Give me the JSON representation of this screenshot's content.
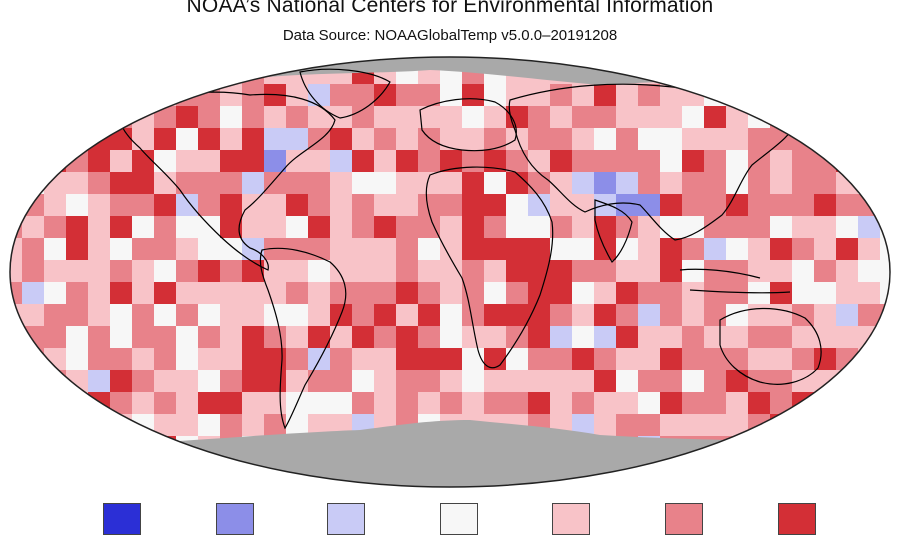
{
  "header": {
    "title": "NOAA’s National Centers for Environmental Information",
    "subtitle": "Data Source: NOAAGlobalTemp v5.0.0–20191208"
  },
  "map": {
    "projection": "robinson",
    "description_colors": {
      "no_data": "#a9a9a9",
      "coastline": "#000000"
    },
    "categories": [
      {
        "id": "much-cooler",
        "color": "#2b2fd6"
      },
      {
        "id": "cooler",
        "color": "#8c8ee8"
      },
      {
        "id": "slightly-cooler",
        "color": "#c9cbf6"
      },
      {
        "id": "near-average",
        "color": "#f7f7f7"
      },
      {
        "id": "slightly-warmer",
        "color": "#f8c3c8"
      },
      {
        "id": "warmer",
        "color": "#e8828a"
      },
      {
        "id": "much-warmer",
        "color": "#d32f36"
      }
    ]
  },
  "legend": {
    "swatch_colors": [
      "#2b2fd6",
      "#8c8ee8",
      "#c9cbf6",
      "#f7f7f7",
      "#f8c3c8",
      "#e8828a",
      "#d32f36"
    ]
  }
}
